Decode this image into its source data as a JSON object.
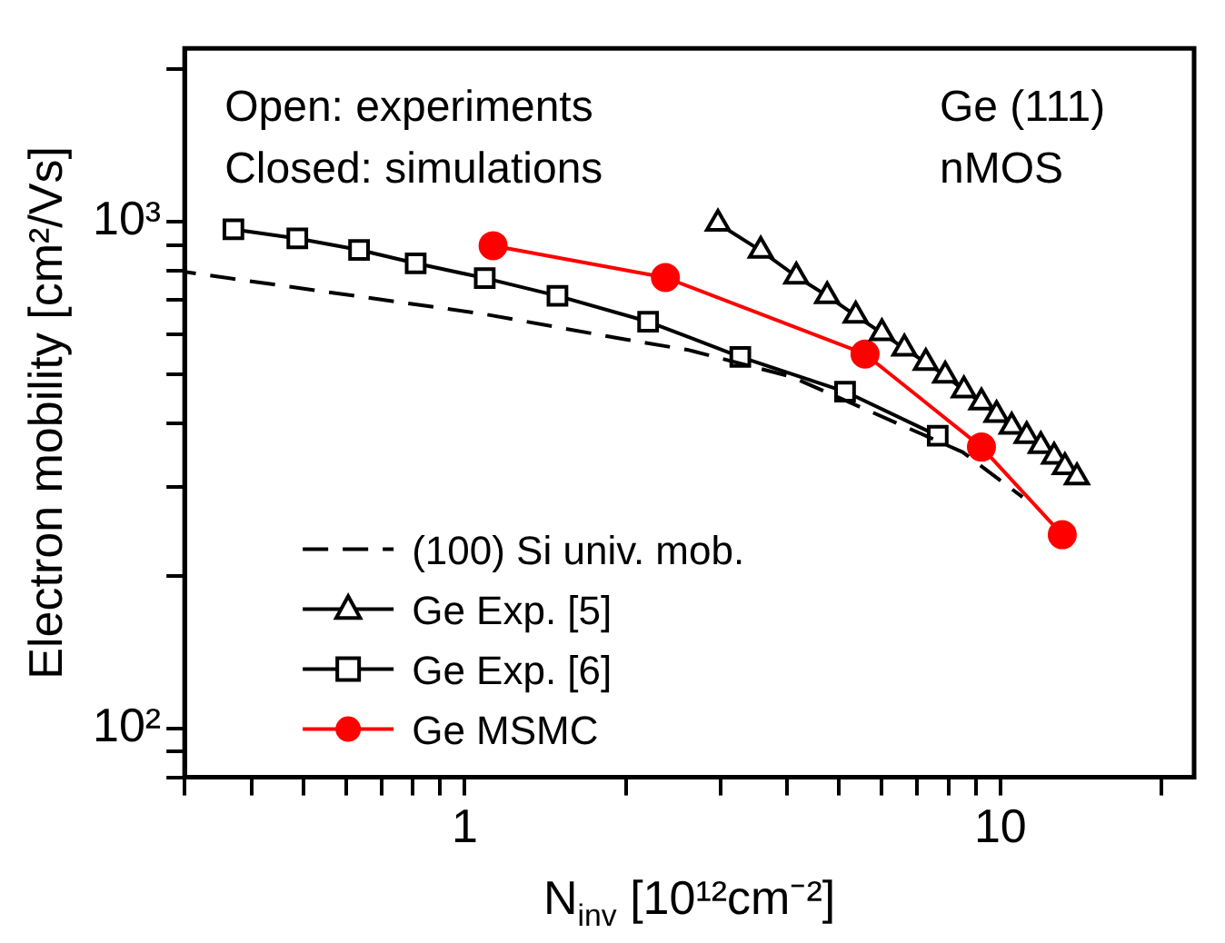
{
  "chart_data": {
    "type": "line",
    "xlabel": "N$_{inv}$ [10¹²cm⁻²]",
    "ylabel": "Electron mobility [cm²/Vs]",
    "annotations": [
      "Open: experiments",
      "Closed: simulations",
      "Ge (111)",
      "nMOS"
    ],
    "log": "xy",
    "xlim": [
      0.3,
      23
    ],
    "ylim": [
      80,
      2200
    ],
    "xticks": [
      {
        "value": 0.3,
        "label": null
      },
      {
        "value": 0.4,
        "label": null
      },
      {
        "value": 0.5,
        "label": null
      },
      {
        "value": 0.6,
        "label": null
      },
      {
        "value": 0.7,
        "label": null
      },
      {
        "value": 0.8,
        "label": null
      },
      {
        "value": 0.9,
        "label": null
      },
      1,
      {
        "value": 2,
        "label": null
      },
      {
        "value": 3,
        "label": null
      },
      {
        "value": 4,
        "label": null
      },
      {
        "value": 5,
        "label": null
      },
      {
        "value": 6,
        "label": null
      },
      {
        "value": 7,
        "label": null
      },
      {
        "value": 8,
        "label": null
      },
      {
        "value": 9,
        "label": null
      },
      10,
      {
        "value": 20,
        "label": null
      }
    ],
    "yticks": [
      {
        "value": 80,
        "label": null
      },
      {
        "value": 90,
        "label": null
      },
      {
        "value": 100,
        "label": "10²"
      },
      {
        "value": 200,
        "label": null
      },
      {
        "value": 300,
        "label": null
      },
      {
        "value": 400,
        "label": null
      },
      {
        "value": 500,
        "label": null
      },
      {
        "value": 600,
        "label": null
      },
      {
        "value": 700,
        "label": null
      },
      {
        "value": 800,
        "label": null
      },
      {
        "value": 900,
        "label": null
      },
      {
        "value": 1000,
        "label": "10³"
      },
      {
        "value": 2000,
        "label": null
      }
    ],
    "grid": false,
    "legend": "bottom left",
    "series": [
      {
        "name": "(100) Si univ. mob.",
        "type": "line",
        "color": "#000000",
        "marker": "none",
        "line_style": "dashed",
        "x": [
          0.3,
          1.08,
          1.99,
          2.62,
          4.08,
          8.5,
          11.0
        ],
        "values": [
          796,
          658,
          586,
          558,
          494,
          351,
          286
        ]
      },
      {
        "name": "Ge Exp. [5]",
        "type": "line",
        "color": "#000000",
        "marker": "triangle",
        "line_style": "solid",
        "x": [
          2.97,
          3.57,
          4.16,
          4.75,
          5.37,
          6.01,
          6.62,
          7.26,
          7.89,
          8.55,
          9.22,
          9.84,
          10.5,
          11.2,
          11.9,
          12.6,
          13.2,
          13.9
        ],
        "values": [
          992,
          877,
          780,
          714,
          653,
          603,
          562,
          527,
          497,
          465,
          440,
          416,
          394,
          378,
          361,
          344,
          328,
          313
        ]
      },
      {
        "name": "Ge Exp. [6]",
        "type": "line",
        "color": "#000000",
        "marker": "square",
        "line_style": "solid",
        "x": [
          0.37,
          0.487,
          0.635,
          0.81,
          1.09,
          1.49,
          2.2,
          3.27,
          5.13,
          7.64
        ],
        "values": [
          966,
          927,
          880,
          828,
          774,
          714,
          635,
          541,
          462,
          378
        ]
      },
      {
        "name": "Ge MSMC",
        "type": "line",
        "color": "#ff0000",
        "marker": "circle",
        "line_style": "solid",
        "x": [
          1.13,
          2.37,
          5.59,
          9.22,
          13.05
        ],
        "values": [
          897,
          776,
          548,
          359,
          241
        ]
      }
    ]
  }
}
